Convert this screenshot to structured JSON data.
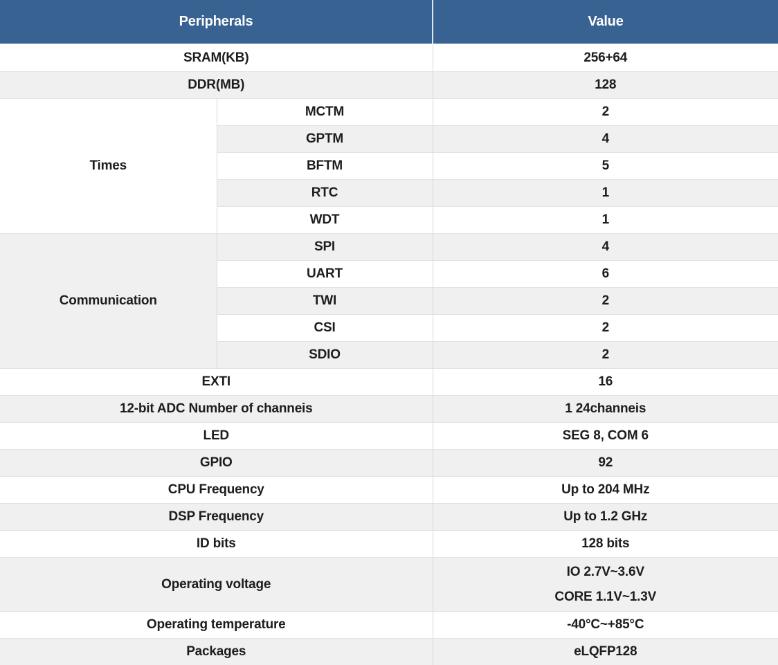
{
  "colors": {
    "header_bg": "#376291",
    "header_text": "#ffffff",
    "row_alt_bg": "#f0f0f0",
    "row_bg": "#ffffff",
    "row_border": "#e2e2e2",
    "column_divider": "#d9d9d9"
  },
  "table": {
    "header": {
      "peripherals": "Peripherals",
      "value": "Value"
    },
    "rows_top": [
      {
        "label": "SRAM(KB)",
        "value": "256+64"
      },
      {
        "label": "DDR(MB)",
        "value": "128"
      }
    ],
    "groups": [
      {
        "label": "Times",
        "items": [
          [
            "MCTM",
            "2"
          ],
          [
            "GPTM",
            "4"
          ],
          [
            "BFTM",
            "5"
          ],
          [
            "RTC",
            "1"
          ],
          [
            "WDT",
            "1"
          ]
        ]
      },
      {
        "label": "Communication",
        "items": [
          [
            "SPI",
            "4"
          ],
          [
            "UART",
            "6"
          ],
          [
            "TWI",
            "2"
          ],
          [
            "CSI",
            "2"
          ],
          [
            "SDIO",
            "2"
          ]
        ]
      }
    ],
    "rows_bottom": [
      {
        "label": "EXTI",
        "value": "16"
      },
      {
        "label": "12-bit ADC Number of channeis",
        "value": "1 24channeis"
      },
      {
        "label": "LED",
        "value": "SEG 8, COM 6"
      },
      {
        "label": "GPIO",
        "value": "92"
      },
      {
        "label": "CPU Frequency",
        "value": "Up to 204 MHz"
      },
      {
        "label": "DSP Frequency",
        "value": "Up to 1.2 GHz"
      },
      {
        "label": "ID bits",
        "value": "128 bits"
      },
      {
        "label": "Operating voltage",
        "value_lines": [
          "IO 2.7V~3.6V",
          "CORE 1.1V~1.3V"
        ]
      },
      {
        "label": "Operating temperature",
        "value": "-40°C~+85°C"
      },
      {
        "label": "Packages",
        "value": "eLQFP128"
      }
    ]
  }
}
